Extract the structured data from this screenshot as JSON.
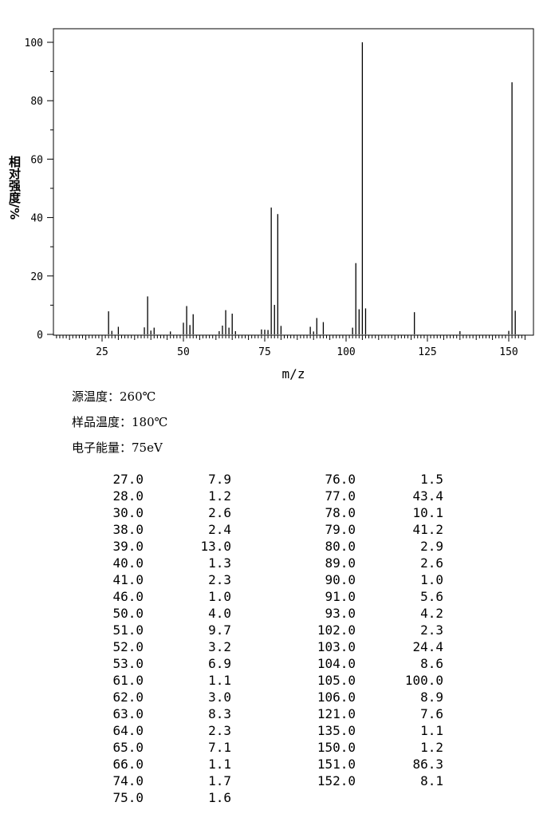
{
  "chart_data": {
    "type": "bar",
    "xlabel": "m/z",
    "ylabel": "相对强度/%",
    "xlim": [
      10,
      155
    ],
    "ylim": [
      0,
      105
    ],
    "xticks": [
      25,
      50,
      75,
      100,
      125,
      150
    ],
    "yticks": [
      0,
      20,
      40,
      60,
      80,
      100
    ],
    "grid": false,
    "color": "#000000",
    "peaks": [
      {
        "mz": "27.0",
        "ab": "7.9"
      },
      {
        "mz": "28.0",
        "ab": "1.2"
      },
      {
        "mz": "30.0",
        "ab": "2.6"
      },
      {
        "mz": "38.0",
        "ab": "2.4"
      },
      {
        "mz": "39.0",
        "ab": "13.0"
      },
      {
        "mz": "40.0",
        "ab": "1.3"
      },
      {
        "mz": "41.0",
        "ab": "2.3"
      },
      {
        "mz": "46.0",
        "ab": "1.0"
      },
      {
        "mz": "50.0",
        "ab": "4.0"
      },
      {
        "mz": "51.0",
        "ab": "9.7"
      },
      {
        "mz": "52.0",
        "ab": "3.2"
      },
      {
        "mz": "53.0",
        "ab": "6.9"
      },
      {
        "mz": "61.0",
        "ab": "1.1"
      },
      {
        "mz": "62.0",
        "ab": "3.0"
      },
      {
        "mz": "63.0",
        "ab": "8.3"
      },
      {
        "mz": "64.0",
        "ab": "2.3"
      },
      {
        "mz": "65.0",
        "ab": "7.1"
      },
      {
        "mz": "66.0",
        "ab": "1.1"
      },
      {
        "mz": "74.0",
        "ab": "1.7"
      },
      {
        "mz": "75.0",
        "ab": "1.6"
      },
      {
        "mz": "76.0",
        "ab": "1.5"
      },
      {
        "mz": "77.0",
        "ab": "43.4"
      },
      {
        "mz": "78.0",
        "ab": "10.1"
      },
      {
        "mz": "79.0",
        "ab": "41.2"
      },
      {
        "mz": "80.0",
        "ab": "2.9"
      },
      {
        "mz": "89.0",
        "ab": "2.6"
      },
      {
        "mz": "90.0",
        "ab": "1.0"
      },
      {
        "mz": "91.0",
        "ab": "5.6"
      },
      {
        "mz": "93.0",
        "ab": "4.2"
      },
      {
        "mz": "102.0",
        "ab": "2.3"
      },
      {
        "mz": "103.0",
        "ab": "24.4"
      },
      {
        "mz": "104.0",
        "ab": "8.6"
      },
      {
        "mz": "105.0",
        "ab": "100.0"
      },
      {
        "mz": "106.0",
        "ab": "8.9"
      },
      {
        "mz": "121.0",
        "ab": "7.6"
      },
      {
        "mz": "135.0",
        "ab": "1.1"
      },
      {
        "mz": "150.0",
        "ab": "1.2"
      },
      {
        "mz": "151.0",
        "ab": "86.3"
      },
      {
        "mz": "152.0",
        "ab": "8.1"
      }
    ]
  },
  "conditions": {
    "source_temp": {
      "label": "源温度：",
      "value": "260℃"
    },
    "sample_temp": {
      "label": "样品温度：",
      "value": "180℃"
    },
    "electron_energy": {
      "label": "电子能量：",
      "value": "75eV"
    }
  }
}
